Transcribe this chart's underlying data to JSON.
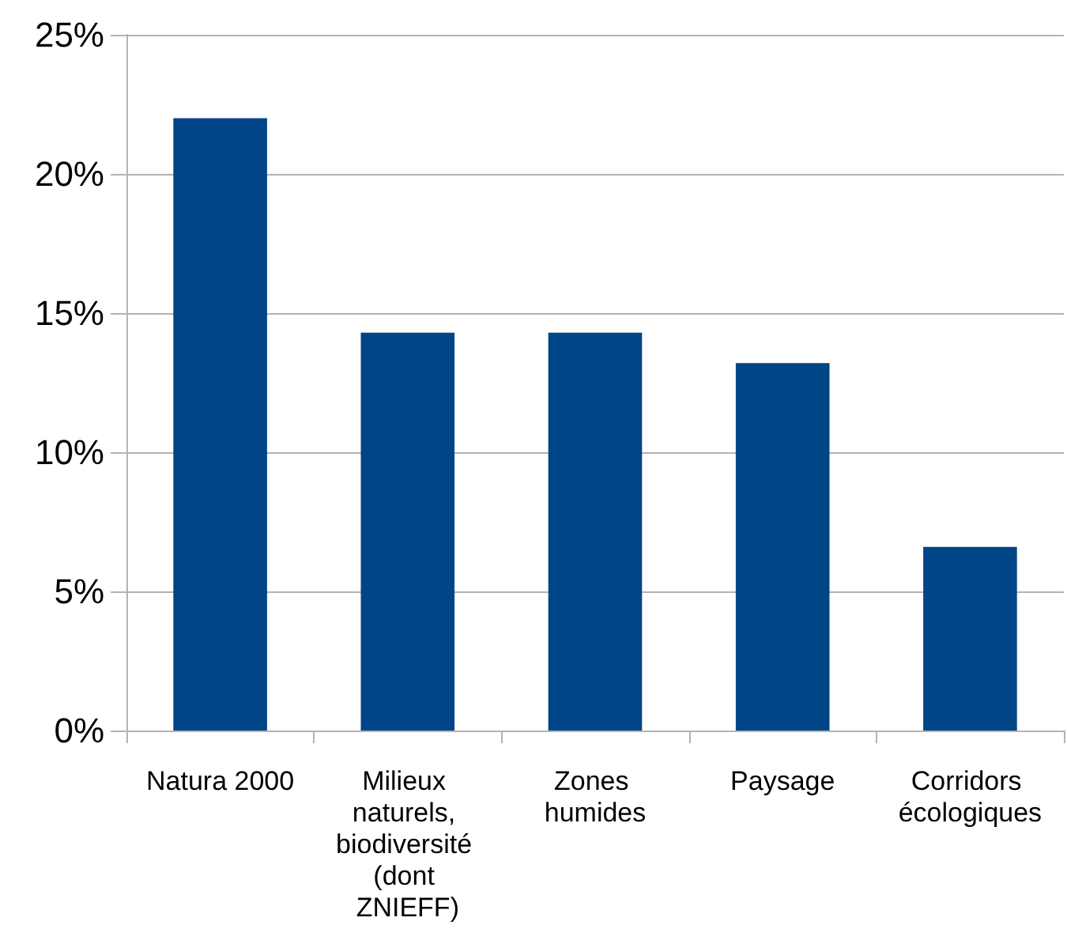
{
  "chart_data": {
    "type": "bar",
    "categories": [
      "Natura 2000",
      "Milieux naturels, biodiversité (dont ZNIEFF)",
      "Zones humides",
      "Paysage",
      "Corridors écologiques"
    ],
    "values": [
      22.0,
      14.3,
      14.3,
      13.2,
      6.6
    ],
    "color": "#004586",
    "ylim": [
      0,
      25
    ],
    "yticks": [
      {
        "value": 0,
        "label": "0%"
      },
      {
        "value": 5,
        "label": "5%"
      },
      {
        "value": 10,
        "label": "10%"
      },
      {
        "value": 15,
        "label": "15%"
      },
      {
        "value": 20,
        "label": "20%"
      },
      {
        "value": 25,
        "label": "25%"
      }
    ],
    "grid": "y"
  }
}
